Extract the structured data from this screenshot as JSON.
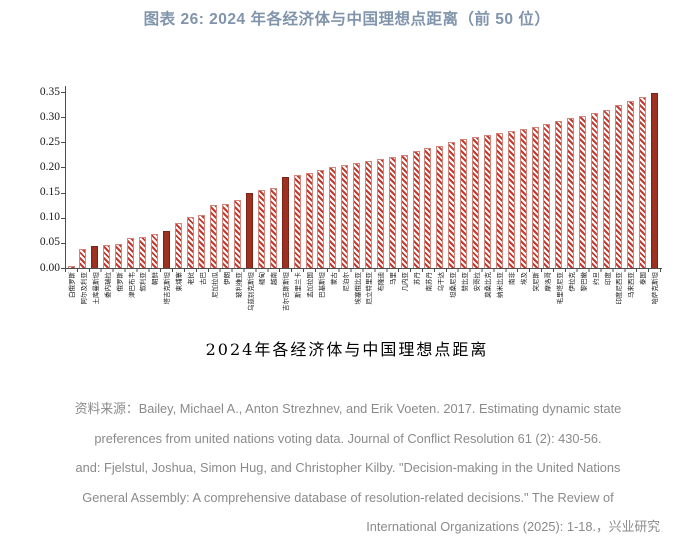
{
  "title": "图表 26: 2024 年各经济体与中国理想点距离（前 50 位）",
  "chart_data": {
    "type": "bar",
    "title": "2024年各经济体与中国理想点距离",
    "xlabel": "",
    "ylabel": "",
    "ylim": [
      0,
      0.35
    ],
    "yticks": [
      "0.00",
      "0.05",
      "0.10",
      "0.15",
      "0.20",
      "0.25",
      "0.30",
      "0.35"
    ],
    "grid": false,
    "legend": null,
    "bar_colors": {
      "hatched_stripe": "#c23b2e",
      "hatched_edge": "#d4847b",
      "solid_fill": "#9c3122"
    },
    "highlighted_indices": [
      2,
      8,
      15,
      18,
      49
    ],
    "categories": [
      "白俄罗斯",
      "阿尔及利亚",
      "土库曼斯坦",
      "委内瑞拉",
      "俄罗斯",
      "津巴布韦",
      "叙利亚",
      "朝鲜",
      "塔吉克斯坦",
      "柬埔寨",
      "老挝",
      "古巴",
      "尼加拉瓜",
      "伊朗",
      "玻利维亚",
      "乌兹别克斯坦",
      "缅甸",
      "越南",
      "吉尔吉斯斯坦",
      "斯里兰卡",
      "孟加拉国",
      "巴基斯坦",
      "蒙古",
      "尼泊尔",
      "埃塞俄比亚",
      "厄立特里亚",
      "布隆迪",
      "马里",
      "几内亚",
      "苏丹",
      "南苏丹",
      "乌干达",
      "坦桑尼亚",
      "赞比亚",
      "安哥拉",
      "莫桑比克",
      "纳米比亚",
      "南非",
      "埃及",
      "突尼斯",
      "摩洛哥",
      "毛里塔尼亚",
      "伊拉克",
      "黎巴嫩",
      "约旦",
      "印度",
      "印度尼西亚",
      "马来西亚",
      "泰国",
      "哈萨克斯坦"
    ],
    "values": [
      0.004,
      0.037,
      0.044,
      0.045,
      0.048,
      0.06,
      0.061,
      0.067,
      0.074,
      0.09,
      0.101,
      0.106,
      0.125,
      0.128,
      0.135,
      0.15,
      0.155,
      0.16,
      0.181,
      0.186,
      0.19,
      0.195,
      0.2,
      0.204,
      0.208,
      0.212,
      0.216,
      0.22,
      0.225,
      0.232,
      0.238,
      0.243,
      0.25,
      0.256,
      0.261,
      0.265,
      0.269,
      0.272,
      0.276,
      0.28,
      0.286,
      0.292,
      0.298,
      0.303,
      0.309,
      0.314,
      0.324,
      0.333,
      0.34,
      0.349
    ]
  },
  "footer": {
    "lines": [
      "资料来源：Bailey, Michael A., Anton Strezhnev, and Erik Voeten. 2017. Estimating dynamic state",
      "preferences from united nations voting data. Journal of Conflict Resolution 61 (2): 430-56.",
      "and: Fjelstul, Joshua, Simon Hug, and Christopher Kilby. \"Decision-making in the United Nations",
      "General Assembly: A comprehensive database of resolution-related decisions.\" The Review of",
      "International Organizations (2025): 1-18.，兴业研究"
    ]
  }
}
